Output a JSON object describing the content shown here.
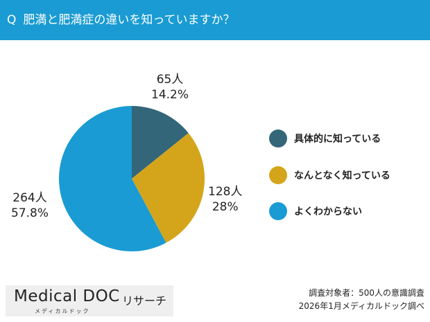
{
  "header": {
    "q": "Q",
    "title": "肥満と肥満症の違いを知っていますか？"
  },
  "chart_data": {
    "type": "pie",
    "title": "肥満と肥満症の違いを知っていますか？",
    "categories": [
      "具体的に知っている",
      "なんとなく知っている",
      "よくわからない"
    ],
    "counts": [
      65,
      128,
      264
    ],
    "values": [
      14.2,
      28,
      57.8
    ],
    "count_labels": [
      "65人",
      "128人",
      "264人"
    ],
    "percent_labels": [
      "14.2%",
      "28%",
      "57.8%"
    ],
    "colors": [
      "#336679",
      "#d4a51a",
      "#1a9bd3"
    ],
    "start": "top",
    "direction": "clockwise",
    "legend": "right"
  },
  "footer": {
    "logo_main": "Medical DOC",
    "logo_sub": "リサーチ",
    "logo_kana": "メディカルドック",
    "source_line1": "調査対象者：500人の意識調査",
    "source_line2": "2026年1月メディカルドック調べ"
  }
}
